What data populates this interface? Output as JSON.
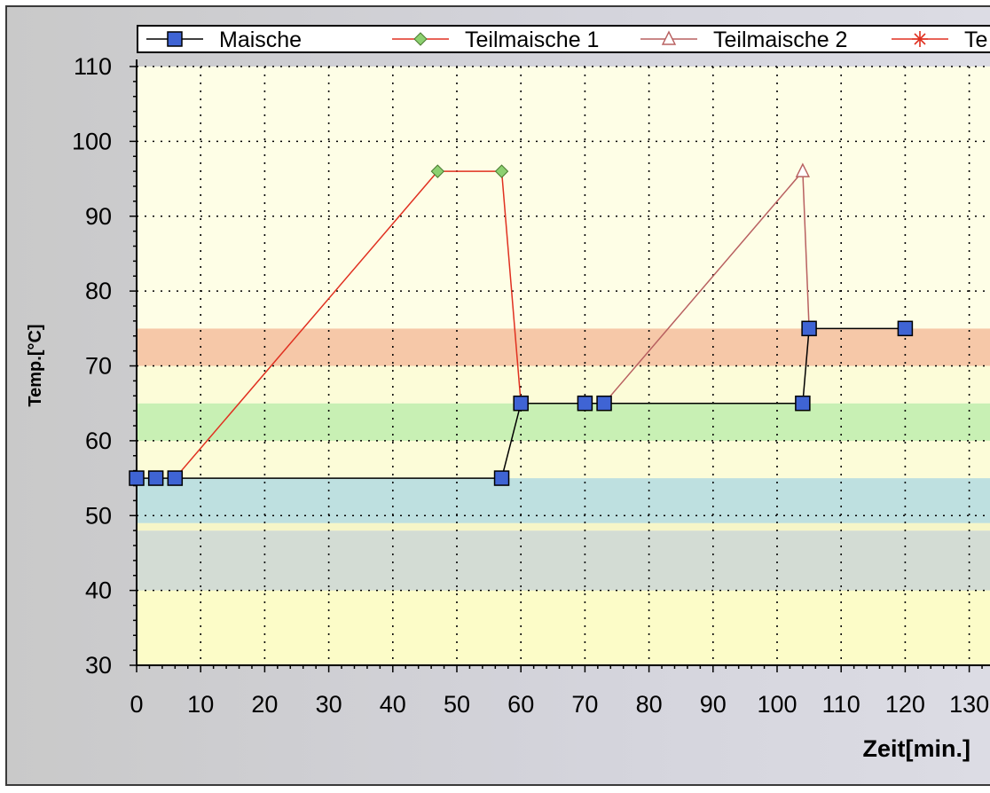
{
  "chart_data": {
    "type": "line",
    "xlabel": "Zeit[min.]",
    "ylabel": "Temp.[°C]",
    "xlim": [
      0,
      130
    ],
    "ylim": [
      30,
      110
    ],
    "x_ticks": [
      0,
      10,
      20,
      30,
      40,
      50,
      60,
      70,
      80,
      90,
      100,
      110,
      120,
      130
    ],
    "y_ticks": [
      30,
      40,
      50,
      60,
      70,
      80,
      90,
      100,
      110
    ],
    "x_tick_labels": [
      "0",
      "10",
      "20",
      "30",
      "40",
      "50",
      "60",
      "70",
      "80",
      "90",
      "100",
      "110",
      "120",
      "130"
    ],
    "y_tick_labels": [
      "30",
      "40",
      "50",
      "60",
      "70",
      "80",
      "90",
      "100",
      "110"
    ],
    "grid": true,
    "legend_position": "top",
    "background_color": "#fefee8",
    "bands": [
      {
        "from": 30,
        "to": 40,
        "color": "#fcfcc8"
      },
      {
        "from": 40,
        "to": 48,
        "color": "#d3dcd4"
      },
      {
        "from": 48,
        "to": 49,
        "color": "#f6f6c8"
      },
      {
        "from": 49,
        "to": 55,
        "color": "#bee0e0"
      },
      {
        "from": 55,
        "to": 60,
        "color": "#fcfcd8"
      },
      {
        "from": 60,
        "to": 65,
        "color": "#c8f0b4"
      },
      {
        "from": 65,
        "to": 70,
        "color": "#fcfcd8"
      },
      {
        "from": 70,
        "to": 75,
        "color": "#f6c8a8"
      },
      {
        "from": 75,
        "to": 110,
        "color": "#fefee6"
      }
    ],
    "series": [
      {
        "name": "Maische",
        "color": "#000000",
        "marker": "square",
        "marker_color": "#3f64d4",
        "points": [
          [
            0,
            55
          ],
          [
            3,
            55
          ],
          [
            6,
            55
          ],
          [
            57,
            55
          ],
          [
            60,
            65
          ],
          [
            70,
            65
          ],
          [
            73,
            65
          ],
          [
            104,
            65
          ],
          [
            105,
            75
          ],
          [
            120,
            75
          ]
        ]
      },
      {
        "name": "Teilmaische 1",
        "color": "#e03020",
        "marker": "diamond",
        "marker_color": "#8cd070",
        "points": [
          [
            6,
            55
          ],
          [
            47,
            96
          ],
          [
            57,
            96
          ],
          [
            60,
            65
          ]
        ]
      },
      {
        "name": "Teilmaische 2",
        "color": "#b86060",
        "marker": "triangle",
        "marker_color": "#ffffff",
        "points": [
          [
            73,
            65
          ],
          [
            104,
            96
          ],
          [
            105,
            75
          ]
        ]
      },
      {
        "name": "Te",
        "color": "#e03020",
        "marker": "star",
        "marker_color": "#e03020",
        "points": []
      }
    ]
  }
}
